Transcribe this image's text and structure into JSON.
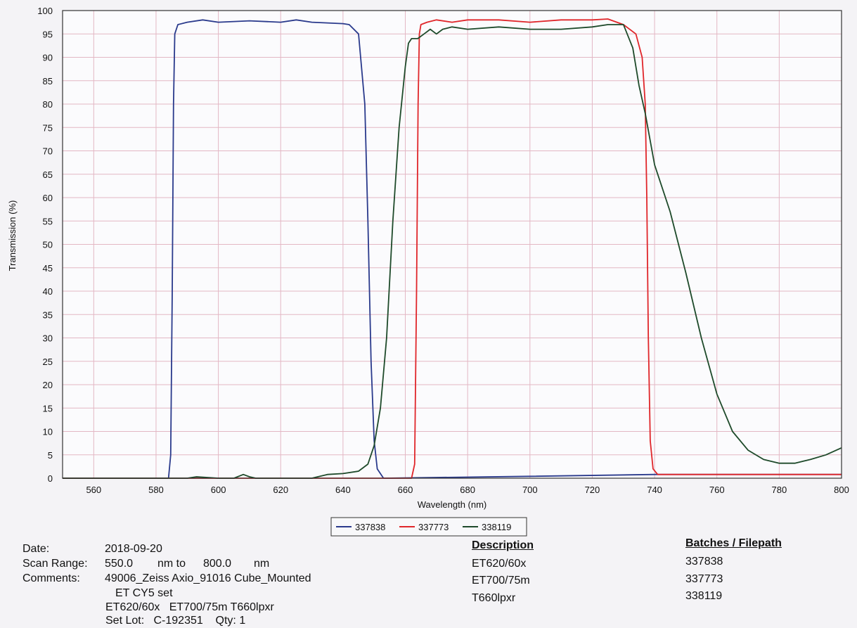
{
  "chart_data": {
    "type": "line",
    "xlabel": "Wavelength (nm)",
    "ylabel": "Transmission (%)",
    "xlim": [
      550,
      800
    ],
    "ylim": [
      0,
      100
    ],
    "x_ticks": [
      560,
      580,
      600,
      620,
      640,
      660,
      680,
      700,
      720,
      740,
      760,
      780,
      800
    ],
    "y_ticks": [
      0,
      5,
      10,
      15,
      20,
      25,
      30,
      35,
      40,
      45,
      50,
      55,
      60,
      65,
      70,
      75,
      80,
      85,
      90,
      95,
      100
    ],
    "grid": true,
    "legend_position": "bottom-center",
    "series": [
      {
        "name": "337838",
        "color": "#2a3a8c",
        "points": [
          [
            550,
            0
          ],
          [
            584,
            0
          ],
          [
            584.7,
            5
          ],
          [
            585.2,
            40
          ],
          [
            585.6,
            80
          ],
          [
            586,
            95
          ],
          [
            587,
            97
          ],
          [
            590,
            97.5
          ],
          [
            595,
            98
          ],
          [
            600,
            97.5
          ],
          [
            610,
            97.8
          ],
          [
            620,
            97.5
          ],
          [
            625,
            98
          ],
          [
            630,
            97.5
          ],
          [
            640,
            97.2
          ],
          [
            642,
            97
          ],
          [
            645,
            95
          ],
          [
            647,
            80
          ],
          [
            648,
            55
          ],
          [
            649,
            25
          ],
          [
            650,
            8
          ],
          [
            651,
            2
          ],
          [
            653,
            0
          ],
          [
            700,
            0.4
          ],
          [
            740,
            0.8
          ],
          [
            800,
            0.8
          ]
        ]
      },
      {
        "name": "337773",
        "color": "#e0262a",
        "points": [
          [
            550,
            0
          ],
          [
            662,
            0
          ],
          [
            663,
            3
          ],
          [
            663.6,
            40
          ],
          [
            664.1,
            80
          ],
          [
            664.5,
            95
          ],
          [
            665,
            97
          ],
          [
            667,
            97.5
          ],
          [
            670,
            98
          ],
          [
            675,
            97.5
          ],
          [
            680,
            98
          ],
          [
            690,
            98
          ],
          [
            700,
            97.5
          ],
          [
            710,
            98
          ],
          [
            720,
            98
          ],
          [
            725,
            98.2
          ],
          [
            730,
            97
          ],
          [
            734,
            95
          ],
          [
            736,
            90
          ],
          [
            737,
            80
          ],
          [
            737.5,
            60
          ],
          [
            738,
            30
          ],
          [
            738.6,
            8
          ],
          [
            739.5,
            2
          ],
          [
            741,
            0.8
          ],
          [
            800,
            0.8
          ]
        ]
      },
      {
        "name": "338119",
        "color": "#1e4a2a",
        "points": [
          [
            550,
            0
          ],
          [
            590,
            0
          ],
          [
            593,
            0.3
          ],
          [
            600,
            0
          ],
          [
            605,
            0
          ],
          [
            608,
            0.8
          ],
          [
            610,
            0.3
          ],
          [
            612,
            0
          ],
          [
            630,
            0
          ],
          [
            635,
            0.8
          ],
          [
            640,
            1
          ],
          [
            645,
            1.5
          ],
          [
            648,
            3
          ],
          [
            650,
            7
          ],
          [
            652,
            15
          ],
          [
            654,
            30
          ],
          [
            656,
            55
          ],
          [
            658,
            75
          ],
          [
            660,
            88
          ],
          [
            661,
            93
          ],
          [
            662,
            94
          ],
          [
            664,
            94
          ],
          [
            666,
            95
          ],
          [
            668,
            96
          ],
          [
            670,
            95
          ],
          [
            672,
            96
          ],
          [
            675,
            96.5
          ],
          [
            680,
            96
          ],
          [
            690,
            96.5
          ],
          [
            700,
            96
          ],
          [
            710,
            96
          ],
          [
            720,
            96.5
          ],
          [
            725,
            97
          ],
          [
            730,
            97
          ],
          [
            733,
            92
          ],
          [
            735,
            84
          ],
          [
            737,
            78
          ],
          [
            740,
            67
          ],
          [
            745,
            57
          ],
          [
            750,
            44
          ],
          [
            755,
            30
          ],
          [
            760,
            18
          ],
          [
            765,
            10
          ],
          [
            770,
            6
          ],
          [
            775,
            4
          ],
          [
            780,
            3.2
          ],
          [
            785,
            3.2
          ],
          [
            790,
            4
          ],
          [
            795,
            5
          ],
          [
            800,
            6.5
          ]
        ]
      }
    ]
  },
  "info": {
    "date_label": "Date:",
    "date_value": "2018-09-20",
    "scan_label": "Scan Range:",
    "scan_start": "550.0",
    "scan_unit1": "nm to",
    "scan_end": "800.0",
    "scan_unit2": "nm",
    "comments_label": "Comments:",
    "comments_line1": "49006_Zeiss Axio_91016 Cube_Mounted",
    "comments_line2": "ET CY5 set",
    "comments_line3": "ET620/60x   ET700/75m T660lpxr",
    "setlot_line": "Set Lot:   C-192351    Qty: 1"
  },
  "table": {
    "description_header": "Description",
    "batches_header": "Batches / Filepath",
    "rows": [
      {
        "description": "ET620/60x",
        "batch": "337838"
      },
      {
        "description": "ET700/75m",
        "batch": "337773"
      },
      {
        "description": "T660lpxr",
        "batch": "338119"
      }
    ]
  }
}
